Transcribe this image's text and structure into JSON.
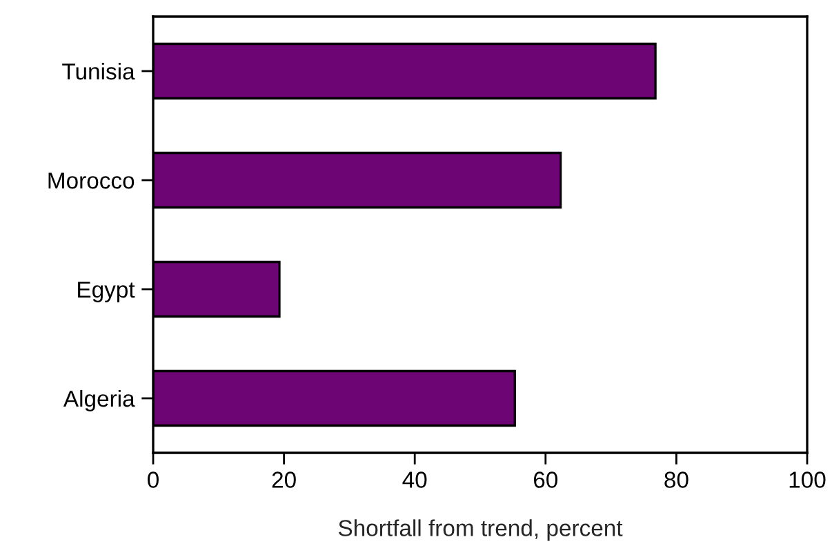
{
  "chart_data": {
    "type": "bar",
    "orientation": "horizontal",
    "categories": [
      "Tunisia",
      "Morocco",
      "Egypt",
      "Algeria"
    ],
    "values": [
      76.8,
      62.3,
      19.3,
      55.3
    ],
    "color": "#6d0575",
    "xlabel": "Shortfall from trend, percent",
    "xlim": [
      0,
      100
    ],
    "xticks": [
      0,
      20,
      40,
      60,
      80,
      100
    ],
    "grid": false,
    "legend": false
  }
}
